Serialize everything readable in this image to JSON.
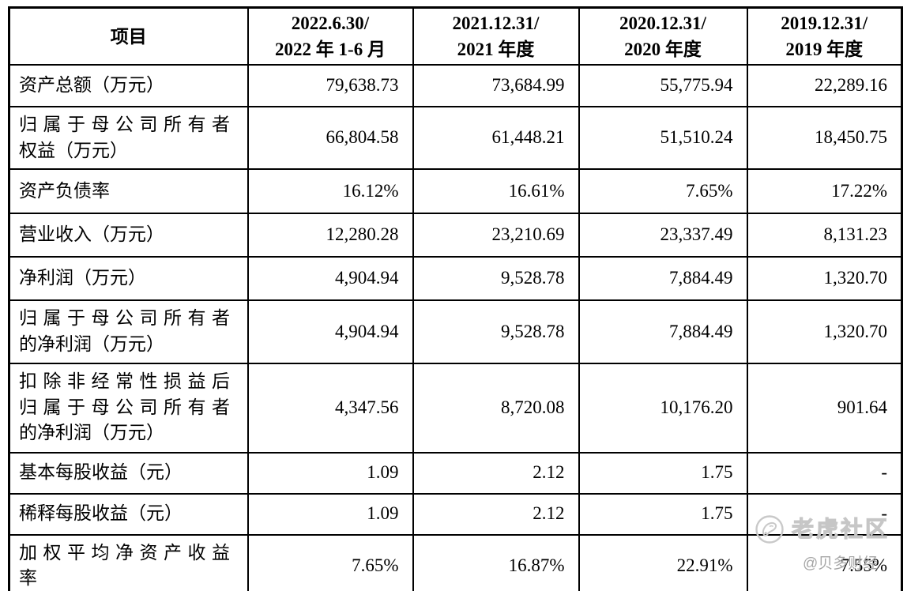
{
  "table": {
    "columns": [
      {
        "lines": [
          "项目"
        ]
      },
      {
        "lines": [
          "2022.6.30/",
          "2022 年 1-6 月"
        ]
      },
      {
        "lines": [
          "2021.12.31/",
          "2021 年度"
        ]
      },
      {
        "lines": [
          "2020.12.31/",
          "2020 年度"
        ]
      },
      {
        "lines": [
          "2019.12.31/",
          "2019 年度"
        ]
      }
    ],
    "rows": [
      {
        "label_lines": [
          "资产总额（万元）"
        ],
        "values": [
          "79,638.73",
          "73,684.99",
          "55,775.94",
          "22,289.16"
        ]
      },
      {
        "label_lines": [
          "归属于母公司所有者",
          "权益（万元）"
        ],
        "values": [
          "66,804.58",
          "61,448.21",
          "51,510.24",
          "18,450.75"
        ]
      },
      {
        "label_lines": [
          "资产负债率"
        ],
        "values": [
          "16.12%",
          "16.61%",
          "7.65%",
          "17.22%"
        ]
      },
      {
        "label_lines": [
          "营业收入（万元）"
        ],
        "values": [
          "12,280.28",
          "23,210.69",
          "23,337.49",
          "8,131.23"
        ]
      },
      {
        "label_lines": [
          "净利润（万元）"
        ],
        "values": [
          "4,904.94",
          "9,528.78",
          "7,884.49",
          "1,320.70"
        ]
      },
      {
        "label_lines": [
          "归属于母公司所有者",
          "的净利润（万元）"
        ],
        "values": [
          "4,904.94",
          "9,528.78",
          "7,884.49",
          "1,320.70"
        ]
      },
      {
        "label_lines": [
          "扣除非经常性损益后",
          "归属于母公司所有者",
          "的净利润（万元）"
        ],
        "values": [
          "4,347.56",
          "8,720.08",
          "10,176.20",
          "901.64"
        ]
      },
      {
        "label_lines": [
          "基本每股收益（元）"
        ],
        "values": [
          "1.09",
          "2.12",
          "1.75",
          "-"
        ]
      },
      {
        "label_lines": [
          "稀释每股收益（元）"
        ],
        "values": [
          "1.09",
          "2.12",
          "1.75",
          "-"
        ]
      },
      {
        "label_lines": [
          "加权平均净资产收益",
          "率"
        ],
        "values": [
          "7.65%",
          "16.87%",
          "22.91%",
          "7.55%"
        ]
      }
    ]
  },
  "watermark": {
    "brand": "老虎社区",
    "handle": "@贝多财经",
    "icon": "tiger-badge-icon",
    "brand_color": "#c6c6c6",
    "handle_color": "#a6a6a6"
  },
  "colors": {
    "border": "#000000",
    "text": "#000000",
    "background": "#ffffff"
  }
}
